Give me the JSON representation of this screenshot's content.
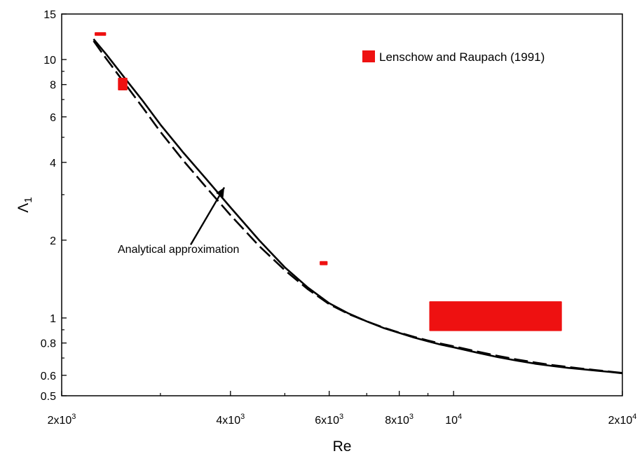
{
  "chart_data": {
    "type": "line",
    "x_scale": "log",
    "y_scale": "log",
    "xlim": [
      2000,
      20000
    ],
    "ylim": [
      0.5,
      15
    ],
    "xlabel": "Re",
    "ylabel": "Λ",
    "ylabel_subscript": "1",
    "x_ticks": [
      {
        "value": 2000,
        "label": "2x10",
        "sup": "3"
      },
      {
        "value": 4000,
        "label": "4x10",
        "sup": "3"
      },
      {
        "value": 6000,
        "label": "6x10",
        "sup": "3"
      },
      {
        "value": 8000,
        "label": "8x10",
        "sup": "3"
      },
      {
        "value": 10000,
        "label": "10",
        "sup": "4"
      },
      {
        "value": 20000,
        "label": "2x10",
        "sup": "4"
      }
    ],
    "x_minor_ticks": [
      3000,
      5000,
      7000,
      9000
    ],
    "y_ticks": [
      {
        "value": 0.5,
        "label": "0.5"
      },
      {
        "value": 0.6,
        "label": "0.6"
      },
      {
        "value": 0.8,
        "label": "0.8"
      },
      {
        "value": 1,
        "label": "1"
      },
      {
        "value": 2,
        "label": "2"
      },
      {
        "value": 4,
        "label": "4"
      },
      {
        "value": 6,
        "label": "6"
      },
      {
        "value": 8,
        "label": "8"
      },
      {
        "value": 10,
        "label": "10"
      },
      {
        "value": 15,
        "label": "15"
      }
    ],
    "y_minor_ticks": [
      0.7,
      0.9,
      3,
      5,
      7,
      9
    ],
    "grid": false,
    "series": [
      {
        "style": "solid",
        "color": "#000000",
        "x": [
          2280,
          2400,
          2600,
          2800,
          3000,
          3300,
          3600,
          4000,
          4500,
          5000,
          5500,
          6000,
          6500,
          7000,
          7500,
          8000,
          8500,
          9000,
          9500,
          10000,
          11000,
          12000,
          13000,
          14000,
          15000,
          16000,
          17000,
          18000,
          19000,
          20000
        ],
        "y": [
          12.0,
          10.5,
          8.4,
          6.85,
          5.6,
          4.35,
          3.5,
          2.68,
          2.0,
          1.57,
          1.31,
          1.14,
          1.04,
          0.97,
          0.915,
          0.875,
          0.84,
          0.812,
          0.788,
          0.77,
          0.735,
          0.705,
          0.683,
          0.665,
          0.652,
          0.641,
          0.633,
          0.625,
          0.618,
          0.611
        ]
      },
      {
        "name": "Analytical approximation",
        "style": "dashed",
        "color": "#000000",
        "x": [
          2280,
          2400,
          2600,
          2800,
          3000,
          3300,
          3600,
          4000,
          4500,
          5000,
          5500,
          6000,
          6500,
          7000,
          7500,
          8000,
          8500,
          9000,
          9500,
          10000,
          11000,
          12000,
          13000,
          14000,
          15000,
          16000,
          17000,
          18000,
          19000,
          20000
        ],
        "y": [
          11.8,
          10.1,
          8.0,
          6.45,
          5.25,
          4.05,
          3.25,
          2.5,
          1.9,
          1.53,
          1.29,
          1.13,
          1.035,
          0.97,
          0.918,
          0.878,
          0.845,
          0.818,
          0.795,
          0.777,
          0.742,
          0.713,
          0.69,
          0.672,
          0.657,
          0.646,
          0.636,
          0.628,
          0.62,
          0.613
        ]
      }
    ],
    "data_boxes": {
      "name": "Lenschow and Raupach (1991)",
      "color": "#ee1111",
      "items": [
        {
          "x": [
            2290,
            2400
          ],
          "y": [
            12.35,
            12.75
          ]
        },
        {
          "x": [
            2520,
            2620
          ],
          "y": [
            7.6,
            8.5
          ]
        },
        {
          "x": [
            5770,
            5960
          ],
          "y": [
            1.6,
            1.66
          ]
        },
        {
          "x": [
            9050,
            15600
          ],
          "y": [
            0.89,
            1.16
          ]
        }
      ]
    },
    "legend": {
      "placement": "top-right"
    },
    "annotation": {
      "text": "Analytical approximation",
      "anchor_text_at": {
        "x": 3900,
        "y": 1.85
      },
      "arrow_tip": {
        "x": 3900,
        "y": 3.2
      }
    }
  }
}
